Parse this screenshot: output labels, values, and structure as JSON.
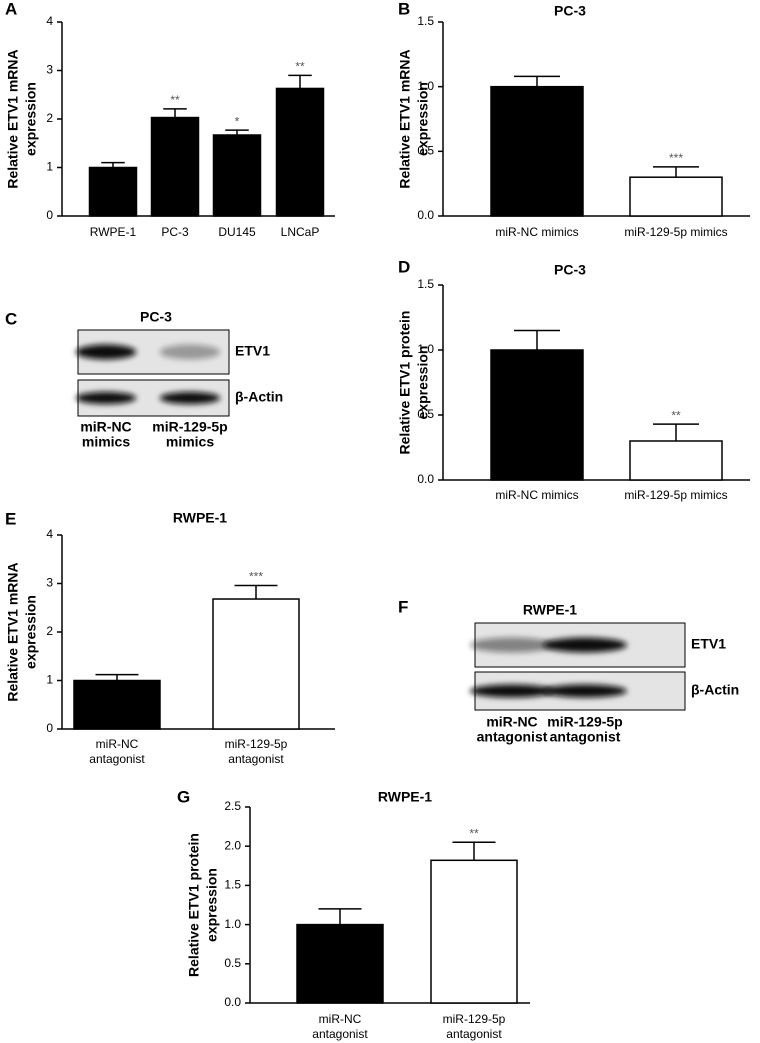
{
  "chart_data": [
    {
      "type": "bar",
      "panel": "A",
      "ylabel": [
        "Relative ETV1 mRNA",
        "expression"
      ],
      "categories": [
        "RWPE-1",
        "PC-3",
        "DU145",
        "LNCaP"
      ],
      "values": [
        1.0,
        2.03,
        1.67,
        2.63
      ],
      "errors": [
        0.1,
        0.18,
        0.1,
        0.27
      ],
      "colors": [
        "#000000",
        "#000000",
        "#000000",
        "#000000"
      ],
      "annotations": [
        null,
        "**",
        "*",
        "**"
      ],
      "ylim": [
        0,
        4
      ],
      "yticks": [
        0,
        1,
        2,
        3,
        4
      ]
    },
    {
      "type": "bar",
      "panel": "B",
      "title": "PC-3",
      "ylabel": [
        "Relative ETV1 mRNA",
        "expression"
      ],
      "categories": [
        "miR-NC mimics",
        "miR-129-5p mimics"
      ],
      "values": [
        1.0,
        0.3
      ],
      "errors": [
        0.08,
        0.08
      ],
      "colors": [
        "#000000",
        "#ffffff"
      ],
      "annotations": [
        null,
        "***"
      ],
      "ylim": [
        0,
        1.5
      ],
      "yticks": [
        {
          "value": 0,
          "label": "0.0"
        },
        {
          "value": 0.5,
          "label": "0.5"
        },
        {
          "value": 1,
          "label": "1.0"
        },
        {
          "value": 1.5,
          "label": "1.5"
        }
      ]
    },
    {
      "type": "bar",
      "panel": "D",
      "title": "PC-3",
      "ylabel": [
        "Relative ETV1 protein",
        "expression"
      ],
      "categories": [
        "miR-NC mimics",
        "miR-129-5p mimics"
      ],
      "values": [
        1.0,
        0.3
      ],
      "errors": [
        0.15,
        0.13
      ],
      "colors": [
        "#000000",
        "#ffffff"
      ],
      "annotations": [
        null,
        "**"
      ],
      "ylim": [
        0,
        1.5
      ],
      "yticks": [
        {
          "value": 0,
          "label": "0.0"
        },
        {
          "value": 0.5,
          "label": "0.5"
        },
        {
          "value": 1,
          "label": "1.0"
        },
        {
          "value": 1.5,
          "label": "1.5"
        }
      ]
    },
    {
      "type": "bar",
      "panel": "E",
      "title": "RWPE-1",
      "ylabel": [
        "Relative ETV1 mRNA",
        "expression"
      ],
      "categories": [
        [
          "miR-NC",
          "antagonist"
        ],
        [
          "miR-129-5p",
          "antagonist"
        ]
      ],
      "values": [
        1.0,
        2.68
      ],
      "errors": [
        0.12,
        0.28
      ],
      "colors": [
        "#000000",
        "#ffffff"
      ],
      "annotations": [
        null,
        "***"
      ],
      "ylim": [
        0,
        4
      ],
      "yticks": [
        0,
        1,
        2,
        3,
        4
      ]
    },
    {
      "type": "bar",
      "panel": "G",
      "title": "RWPE-1",
      "ylabel": [
        "Relative ETV1 protein",
        "expression"
      ],
      "categories": [
        [
          "miR-NC",
          "antagonist"
        ],
        [
          "miR-129-5p",
          "antagonist"
        ]
      ],
      "values": [
        1.0,
        1.82
      ],
      "errors": [
        0.2,
        0.23
      ],
      "colors": [
        "#000000",
        "#ffffff"
      ],
      "annotations": [
        null,
        "**"
      ],
      "ylim": [
        0,
        2.5
      ],
      "yticks": [
        {
          "value": 0,
          "label": "0.0"
        },
        {
          "value": 0.5,
          "label": "0.5"
        },
        {
          "value": 1,
          "label": "1.0"
        },
        {
          "value": 1.5,
          "label": "1.5"
        },
        {
          "value": 2,
          "label": "2.0"
        },
        {
          "value": 2.5,
          "label": "2.5"
        }
      ]
    }
  ],
  "blots": [
    {
      "panel": "C",
      "title": "PC-3",
      "bands": [
        "ETV1",
        "β-Actin"
      ],
      "lanes": [
        [
          "miR-NC",
          "mimics"
        ],
        [
          "miR-129-5p",
          "mimics"
        ]
      ]
    },
    {
      "panel": "F",
      "title": "RWPE-1",
      "bands": [
        "ETV1",
        "β-Actin"
      ],
      "lanes": [
        [
          "miR-NC",
          "antagonist"
        ],
        [
          "miR-129-5p",
          "antagonist"
        ]
      ]
    }
  ]
}
